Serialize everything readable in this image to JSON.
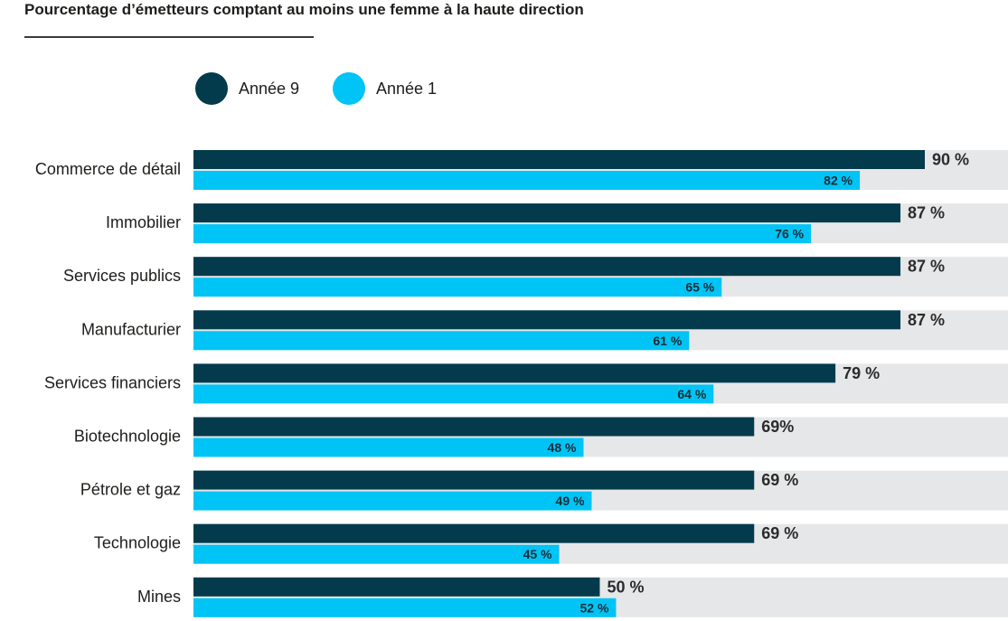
{
  "colors": {
    "series_a": "#033b4c",
    "series_b": "#00c4f5",
    "track": "#e6e7e8"
  },
  "chart_data": {
    "type": "bar",
    "orientation": "horizontal",
    "title": "Pourcentage d’émetteurs comptant au moins une femme à la haute direction",
    "xlim": [
      0,
      100
    ],
    "grid": false,
    "legend_position": "top",
    "categories": [
      "Commerce de détail",
      "Immobilier",
      "Services publics",
      "Manufacturier",
      "Services financiers",
      "Biotechnologie",
      "Pétrole et gaz",
      "Technologie",
      "Mines"
    ],
    "series": [
      {
        "name": "Année 9",
        "values": [
          90,
          87,
          87,
          87,
          79,
          69,
          69,
          69,
          50
        ],
        "labels": [
          "90 %",
          "87 %",
          "87 %",
          "87 %",
          "79 %",
          "69%",
          "69 %",
          "69 %",
          "50 %"
        ]
      },
      {
        "name": "Année 1",
        "values": [
          82,
          76,
          65,
          61,
          64,
          48,
          49,
          45,
          52
        ],
        "labels": [
          "82 %",
          "76 %",
          "65 %",
          "61 %",
          "64 %",
          "48 %",
          "49 %",
          "45 %",
          "52 %"
        ]
      }
    ]
  }
}
